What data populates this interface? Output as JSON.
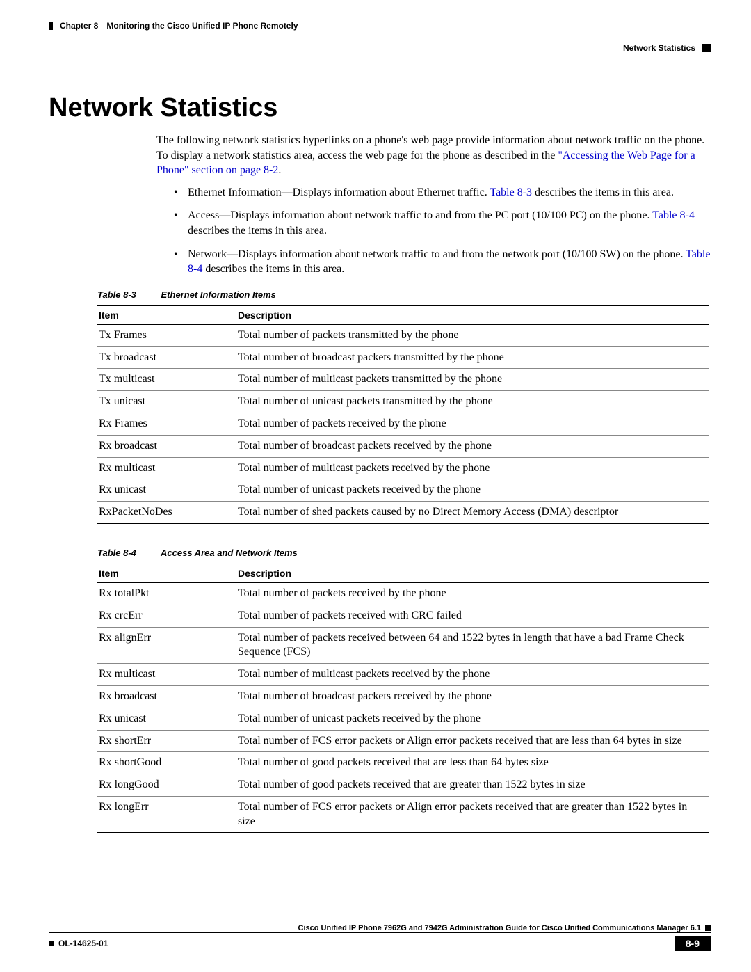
{
  "header": {
    "chapter_label": "Chapter 8",
    "chapter_title": "Monitoring the Cisco Unified IP Phone Remotely",
    "section_title": "Network Statistics"
  },
  "title": "Network Statistics",
  "intro": {
    "text_before_link": "The following network statistics hyperlinks on a phone's web page provide information about network traffic on the phone. To display a network statistics area, access the web page for the phone as described in the ",
    "link_text": "\"Accessing the Web Page for a Phone\" section on page 8-2",
    "text_after_link": "."
  },
  "bullets": [
    {
      "before": "Ethernet Information—Displays information about Ethernet traffic. ",
      "link": "Table 8-3",
      "after": " describes the items in this area."
    },
    {
      "before": "Access—Displays information about network traffic to and from the PC port (10/100 PC) on the phone. ",
      "link": "Table 8-4",
      "after": " describes the items in this area."
    },
    {
      "before": "Network—Displays information about network traffic to and from the network port (10/100 SW) on the phone. ",
      "link": "Table 8-4",
      "after": " describes the items in this area."
    }
  ],
  "table1": {
    "label": "Table 8-3",
    "caption": "Ethernet Information Items",
    "columns": [
      "Item",
      "Description"
    ],
    "rows": [
      [
        "Tx Frames",
        "Total number of packets transmitted by the phone"
      ],
      [
        "Tx broadcast",
        "Total number of broadcast packets transmitted by the phone"
      ],
      [
        "Tx multicast",
        "Total number of multicast packets transmitted by the phone"
      ],
      [
        "Tx unicast",
        "Total number of unicast packets transmitted by the phone"
      ],
      [
        "Rx Frames",
        "Total number of packets received by the phone"
      ],
      [
        "Rx broadcast",
        "Total number of broadcast packets received by the phone"
      ],
      [
        "Rx multicast",
        "Total number of multicast packets received by the phone"
      ],
      [
        "Rx unicast",
        "Total number of unicast packets received by the phone"
      ],
      [
        "RxPacketNoDes",
        "Total number of shed packets caused by no Direct Memory Access (DMA) descriptor"
      ]
    ]
  },
  "table2": {
    "label": "Table 8-4",
    "caption": "Access Area and Network Items",
    "columns": [
      "Item",
      "Description"
    ],
    "rows": [
      [
        "Rx totalPkt",
        "Total number of packets received by the phone"
      ],
      [
        "Rx crcErr",
        "Total number of packets received with CRC failed"
      ],
      [
        "Rx alignErr",
        "Total number of packets received between 64 and 1522 bytes in length that have a bad Frame Check Sequence (FCS)"
      ],
      [
        "Rx multicast",
        "Total number of multicast packets received by the phone"
      ],
      [
        "Rx broadcast",
        "Total number of broadcast packets received by the phone"
      ],
      [
        "Rx unicast",
        "Total number of unicast packets received by the phone"
      ],
      [
        "Rx shortErr",
        "Total number of FCS error packets or Align error packets received that are less than 64 bytes in size"
      ],
      [
        "Rx shortGood",
        "Total number of good packets received that are less than 64 bytes size"
      ],
      [
        "Rx longGood",
        "Total number of good packets received that are greater than 1522 bytes in size"
      ],
      [
        "Rx longErr",
        "Total number of FCS error packets or Align error packets received that are greater than 1522 bytes in size"
      ]
    ]
  },
  "footer": {
    "guide_title": "Cisco Unified IP Phone 7962G and 7942G Administration Guide for Cisco Unified Communications Manager 6.1",
    "doc_id": "OL-14625-01",
    "page_number": "8-9"
  },
  "colors": {
    "link": "#0000cc",
    "text": "#000000",
    "background": "#ffffff"
  }
}
